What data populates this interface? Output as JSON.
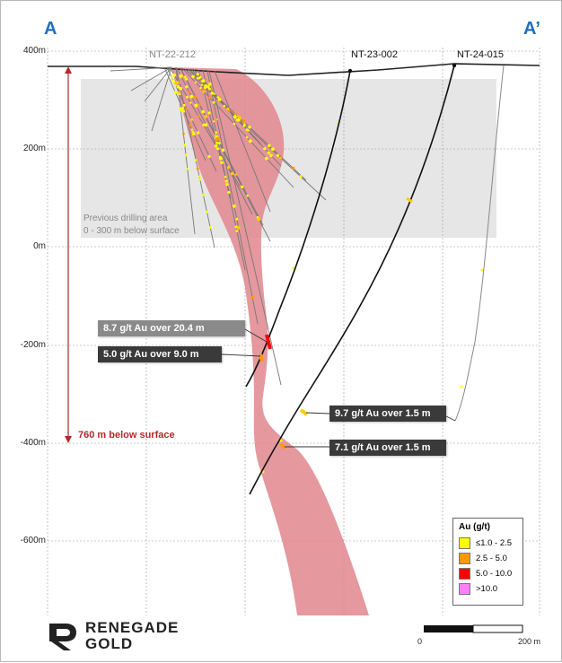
{
  "section": {
    "start_label": "A",
    "end_label": "A’"
  },
  "elevation_axis": {
    "unit": "m",
    "ticks": [
      {
        "value": 400,
        "label": "400m"
      },
      {
        "value": 200,
        "label": "200m"
      },
      {
        "value": 0,
        "label": "0m"
      },
      {
        "value": -200,
        "label": "-200m"
      },
      {
        "value": -400,
        "label": "-400m"
      },
      {
        "value": -600,
        "label": "-600m"
      }
    ]
  },
  "drillholes": {
    "nt_22_212": {
      "label": "NT-22-212",
      "color": "#888888"
    },
    "nt_23_002": {
      "label": "NT-23-002",
      "color": "#111111"
    },
    "nt_24_015": {
      "label": "NT-24-015",
      "color": "#111111"
    }
  },
  "previous_drilling": {
    "line1": "Previous drilling area",
    "line2": "0 - 300 m below surface",
    "depth_range_m": [
      0,
      300
    ]
  },
  "depth_annotation": {
    "label": "760 m below surface",
    "value_m": 760
  },
  "intercepts": [
    {
      "id": "int-1",
      "text": "8.7 g/t Au over 20.4 m",
      "grade_gpt": 8.7,
      "length_m": 20.4,
      "style": "grey"
    },
    {
      "id": "int-2",
      "text": "5.0 g/t Au over 9.0 m",
      "grade_gpt": 5.0,
      "length_m": 9.0,
      "style": "dark"
    },
    {
      "id": "int-3",
      "text": "9.7 g/t Au over 1.5 m",
      "grade_gpt": 9.7,
      "length_m": 1.5,
      "style": "dark"
    },
    {
      "id": "int-4",
      "text": "7.1 g/t Au over 1.5 m",
      "grade_gpt": 7.1,
      "length_m": 1.5,
      "style": "dark"
    }
  ],
  "legend": {
    "title": "Au (g/t)",
    "items": [
      {
        "label": "≤1.0 - 2.5",
        "color": "#ffff00"
      },
      {
        "label": "2.5 - 5.0",
        "color": "#ff9900"
      },
      {
        "label": "5.0 - 10.0",
        "color": "#ff0000"
      },
      {
        "label": ">10.0",
        "color": "#ff80ff"
      }
    ]
  },
  "scale_bar": {
    "start_label": "0",
    "end_label": "200 m",
    "length_m": 200
  },
  "logo": {
    "line1": "RENEGADE",
    "line2": "GOLD"
  },
  "colors": {
    "label_blue": "#1f6fbf",
    "zone_red": "#e1868d",
    "depth_red": "#b22a2a",
    "previous_area_grey": "#e6e6e6",
    "grid": "#999999"
  }
}
